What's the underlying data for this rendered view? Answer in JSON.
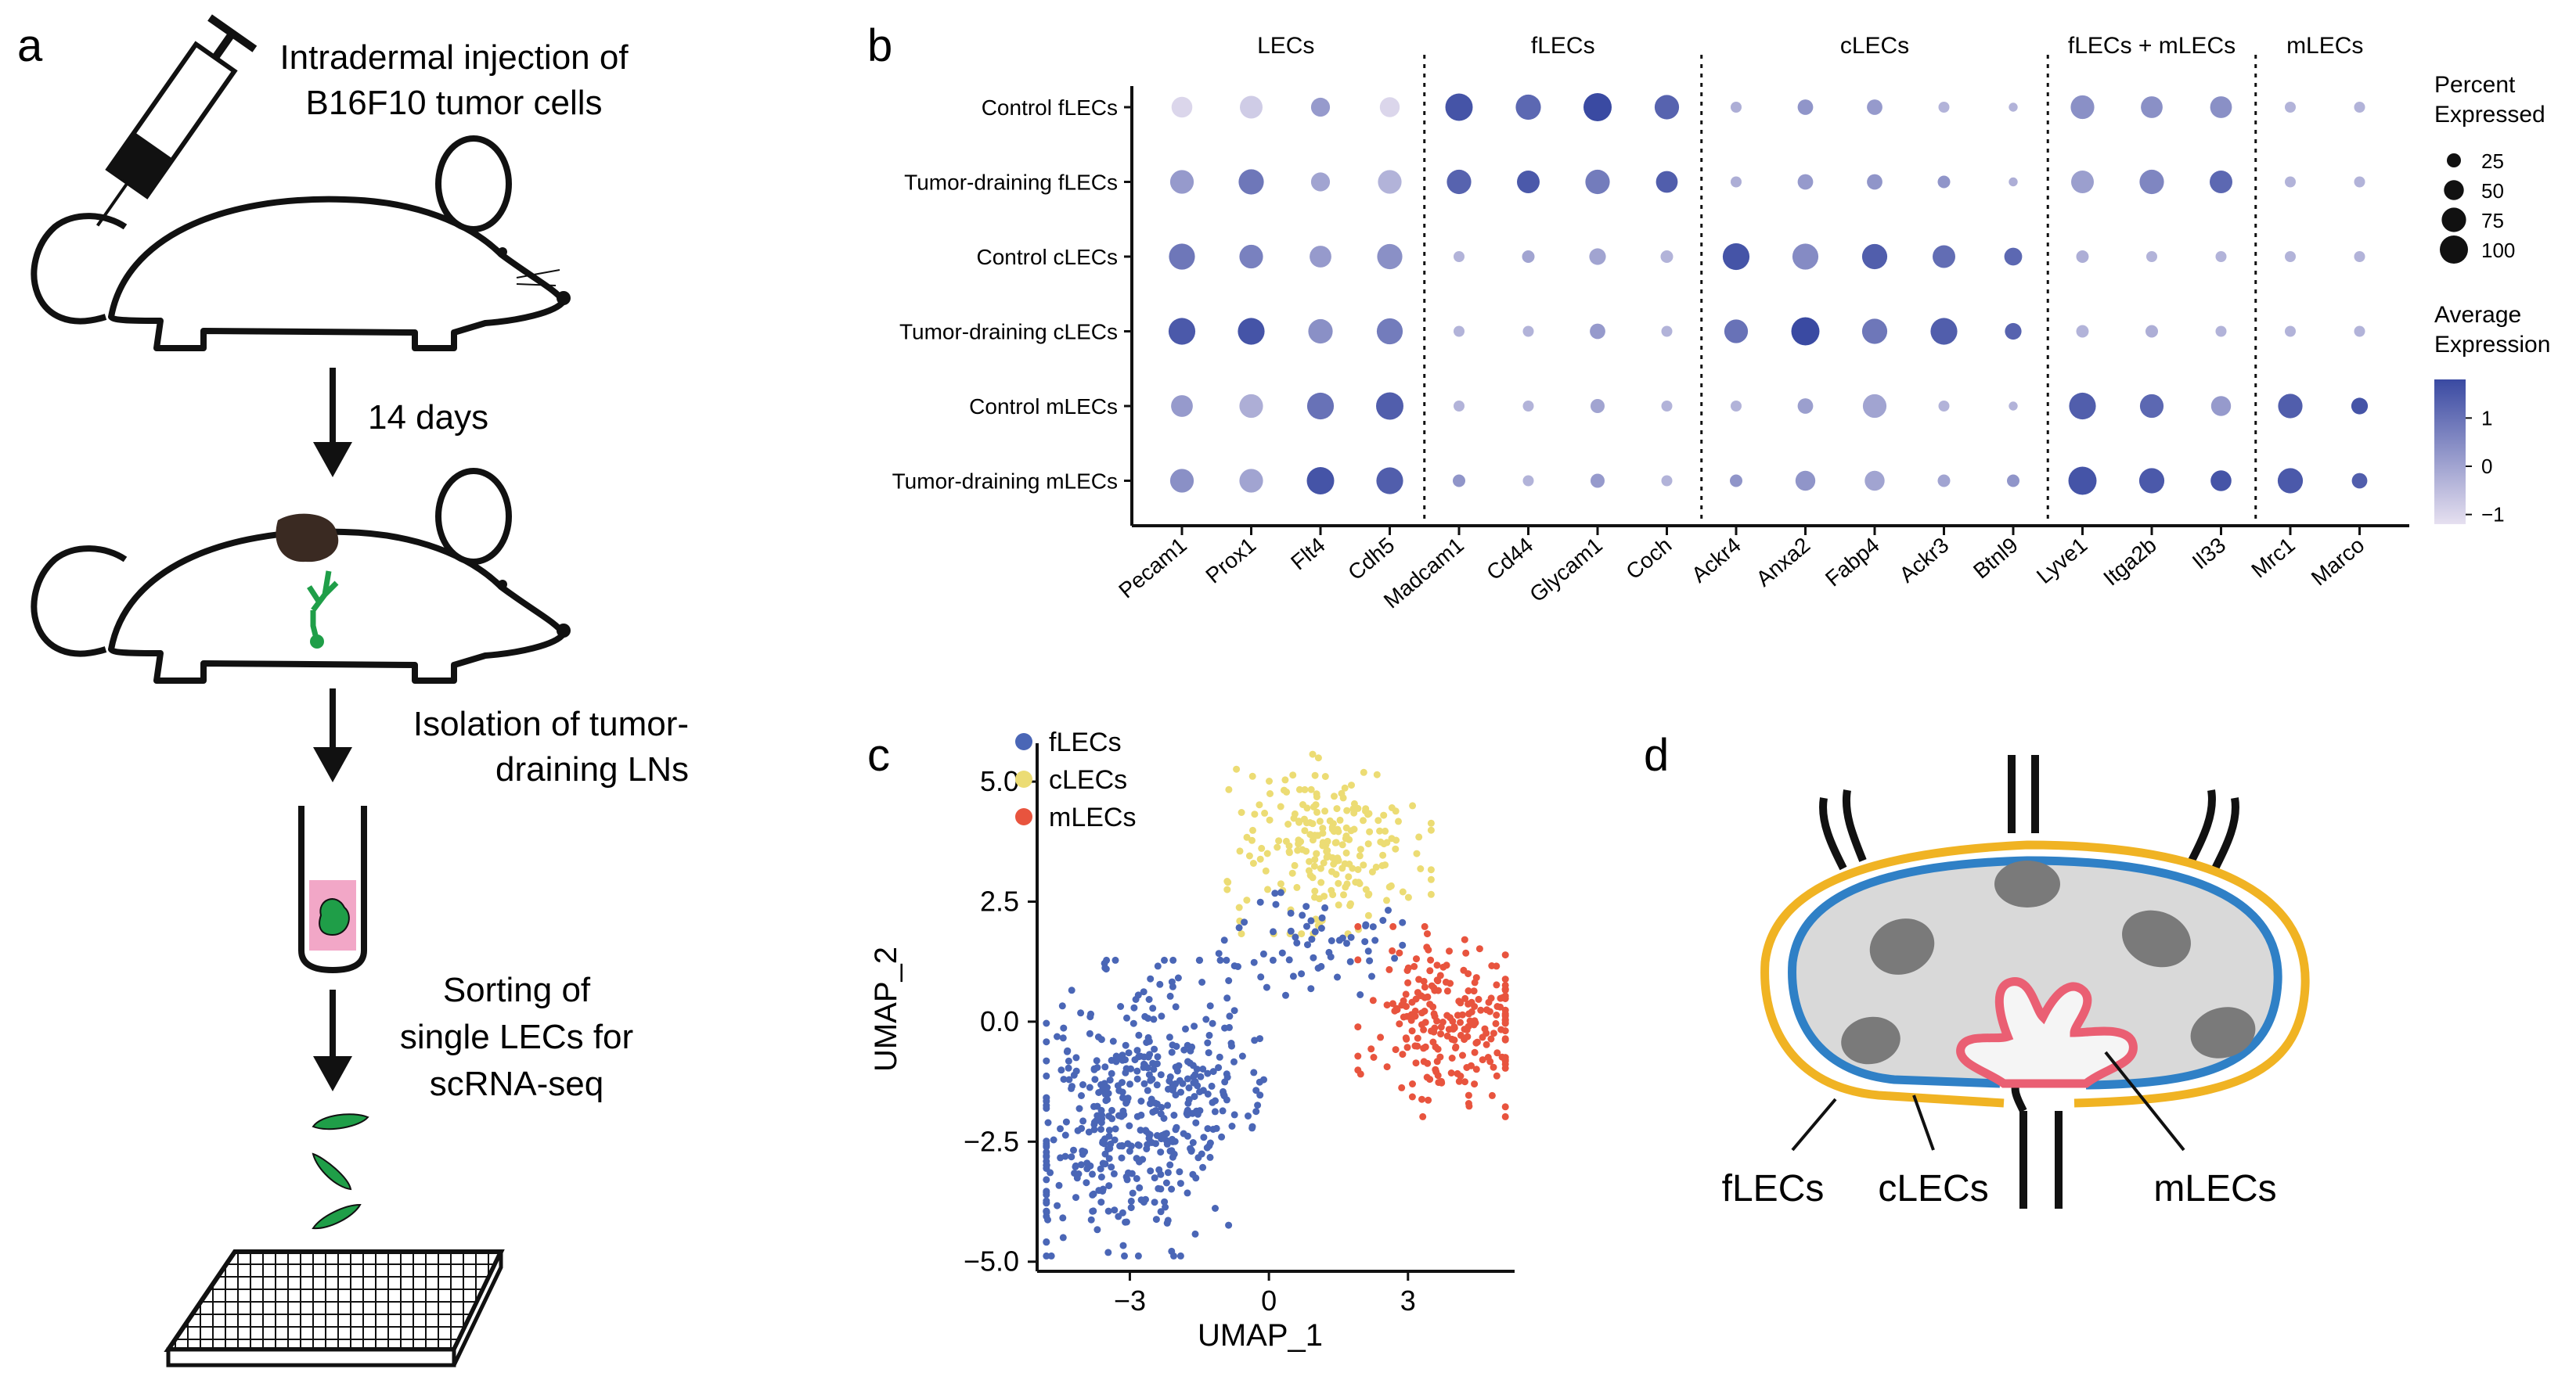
{
  "panels": {
    "a": {
      "label": "a",
      "steps": [
        {
          "line1": "Intradermal injection of",
          "line2": "B16F10 tumor cells"
        },
        {
          "line1": "14 days"
        },
        {
          "line1": "Isolation of tumor-",
          "line2": "draining LNs"
        },
        {
          "line1": "Sorting of",
          "line2": "single LECs for",
          "line3": "scRNA-seq"
        }
      ]
    },
    "b": {
      "label": "b"
    },
    "c": {
      "label": "c"
    },
    "d": {
      "label": "d",
      "labels": [
        "fLECs",
        "cLECs",
        "mLECs"
      ]
    }
  },
  "chart_data": [
    {
      "type": "dotplot",
      "panel": "b",
      "groups": [
        {
          "label": "LECs",
          "genes": [
            "Pecam1",
            "Prox1",
            "Flt4",
            "Cdh5"
          ]
        },
        {
          "label": "fLECs",
          "genes": [
            "Madcam1",
            "Cd44",
            "Glycam1",
            "Coch"
          ]
        },
        {
          "label": "cLECs",
          "genes": [
            "Ackr4",
            "Anxa2",
            "Fabp4",
            "Ackr3",
            "Btnl9"
          ]
        },
        {
          "label": "fLECs + mLECs",
          "genes": [
            "Lyve1",
            "Itga2b",
            "Il33"
          ]
        },
        {
          "label": "mLECs",
          "genes": [
            "Mrc1",
            "Marco"
          ]
        }
      ],
      "genes": [
        "Pecam1",
        "Prox1",
        "Flt4",
        "Cdh5",
        "Madcam1",
        "Cd44",
        "Glycam1",
        "Coch",
        "Ackr4",
        "Anxa2",
        "Fabp4",
        "Ackr3",
        "Btnl9",
        "Lyve1",
        "Itga2b",
        "Il33",
        "Mrc1",
        "Marco"
      ],
      "rows": [
        "Control fLECs",
        "Tumor-draining fLECs",
        "Control cLECs",
        "Tumor-draining cLECs",
        "Control mLECs",
        "Tumor-draining mLECs"
      ],
      "percent_expressed": [
        [
          55,
          65,
          45,
          50,
          95,
          80,
          100,
          75,
          15,
          30,
          30,
          15,
          10,
          70,
          60,
          60,
          15,
          15
        ],
        [
          70,
          80,
          45,
          70,
          75,
          65,
          75,
          60,
          15,
          30,
          30,
          20,
          10,
          65,
          75,
          65,
          15,
          15
        ],
        [
          85,
          70,
          60,
          80,
          15,
          20,
          35,
          20,
          90,
          85,
          80,
          65,
          40,
          20,
          15,
          15,
          15,
          15
        ],
        [
          90,
          90,
          75,
          85,
          15,
          15,
          30,
          15,
          70,
          100,
          80,
          90,
          35,
          20,
          20,
          15,
          15,
          15
        ],
        [
          60,
          70,
          90,
          95,
          15,
          15,
          25,
          15,
          15,
          30,
          70,
          15,
          10,
          90,
          70,
          50,
          75,
          35
        ],
        [
          70,
          70,
          95,
          90,
          20,
          15,
          25,
          15,
          20,
          50,
          50,
          20,
          20,
          100,
          80,
          55,
          80,
          30
        ]
      ],
      "average_expression": [
        [
          -1,
          -0.8,
          0.2,
          -1,
          1.6,
          1.2,
          1.8,
          1.3,
          -0.2,
          0.3,
          0.2,
          -0.3,
          -0.3,
          0.4,
          0.4,
          0.4,
          -0.3,
          -0.3
        ],
        [
          0.2,
          0.9,
          0,
          -0.3,
          1.3,
          1.5,
          0.8,
          1.4,
          -0.2,
          0.2,
          0.3,
          0.3,
          -0.2,
          0.1,
          0.6,
          1.2,
          -0.3,
          -0.3
        ],
        [
          0.9,
          0.7,
          0.2,
          0.4,
          -0.3,
          0,
          0,
          -0.3,
          1.6,
          0.5,
          1.4,
          1.1,
          1.2,
          -0.2,
          -0.3,
          -0.3,
          -0.3,
          -0.3
        ],
        [
          1.5,
          1.6,
          0.4,
          0.8,
          -0.3,
          -0.3,
          0.2,
          -0.3,
          1.0,
          1.8,
          0.9,
          1.4,
          1.3,
          -0.3,
          -0.2,
          -0.3,
          -0.3,
          -0.3
        ],
        [
          0.2,
          -0.2,
          1,
          1.4,
          -0.3,
          -0.3,
          0,
          -0.3,
          -0.3,
          0.1,
          0,
          -0.3,
          -0.3,
          1.4,
          1.2,
          0.2,
          1.4,
          1.6
        ],
        [
          0.4,
          0,
          1.6,
          1.4,
          0.3,
          -0.3,
          0.2,
          -0.3,
          0.3,
          0.3,
          0,
          0,
          0.3,
          1.6,
          1.5,
          1.6,
          1.5,
          1.4
        ]
      ],
      "size_legend": {
        "title_line1": "Percent",
        "title_line2": "Expressed",
        "values": [
          25,
          50,
          75,
          100
        ]
      },
      "color_legend": {
        "title_line1": "Average",
        "title_line2": "Expression",
        "ticks": [
          1,
          0,
          -1
        ],
        "range": [
          -1.2,
          1.8
        ],
        "low_color": "#e6e0f0",
        "high_color": "#3a4aa2"
      }
    },
    {
      "type": "scatter",
      "panel": "c",
      "xlabel": "UMAP_1",
      "ylabel": "UMAP_2",
      "xlim": [
        -5.0,
        5.3
      ],
      "ylim": [
        -5.2,
        5.8
      ],
      "xticks": [
        -3,
        0,
        3
      ],
      "yticks": [
        5.0,
        2.5,
        0.0,
        -2.5,
        -5.0
      ],
      "xtick_labels": [
        "-3",
        "0",
        "3"
      ],
      "ytick_labels": [
        "5.0",
        "2.5",
        "0.0",
        "-2.5",
        "-5.0"
      ],
      "legend": [
        {
          "name": "fLECs",
          "color": "#4a66b6"
        },
        {
          "name": "cLECs",
          "color": "#ecdc74"
        },
        {
          "name": "mLECs",
          "color": "#e8543e"
        }
      ],
      "clusters": [
        {
          "name": "fLECs",
          "n": 470,
          "cx": -2.9,
          "cy": -1.8,
          "sx": 1.2,
          "sy": 1.4
        },
        {
          "name": "fLECs",
          "n": 60,
          "cx": 0.9,
          "cy": 1.6,
          "sx": 0.9,
          "sy": 0.55
        },
        {
          "name": "cLECs",
          "n": 220,
          "cx": 1.3,
          "cy": 3.7,
          "sx": 1.0,
          "sy": 0.85
        },
        {
          "name": "mLECs",
          "n": 230,
          "cx": 3.9,
          "cy": 0.0,
          "sx": 0.9,
          "sy": 0.9
        }
      ]
    }
  ]
}
